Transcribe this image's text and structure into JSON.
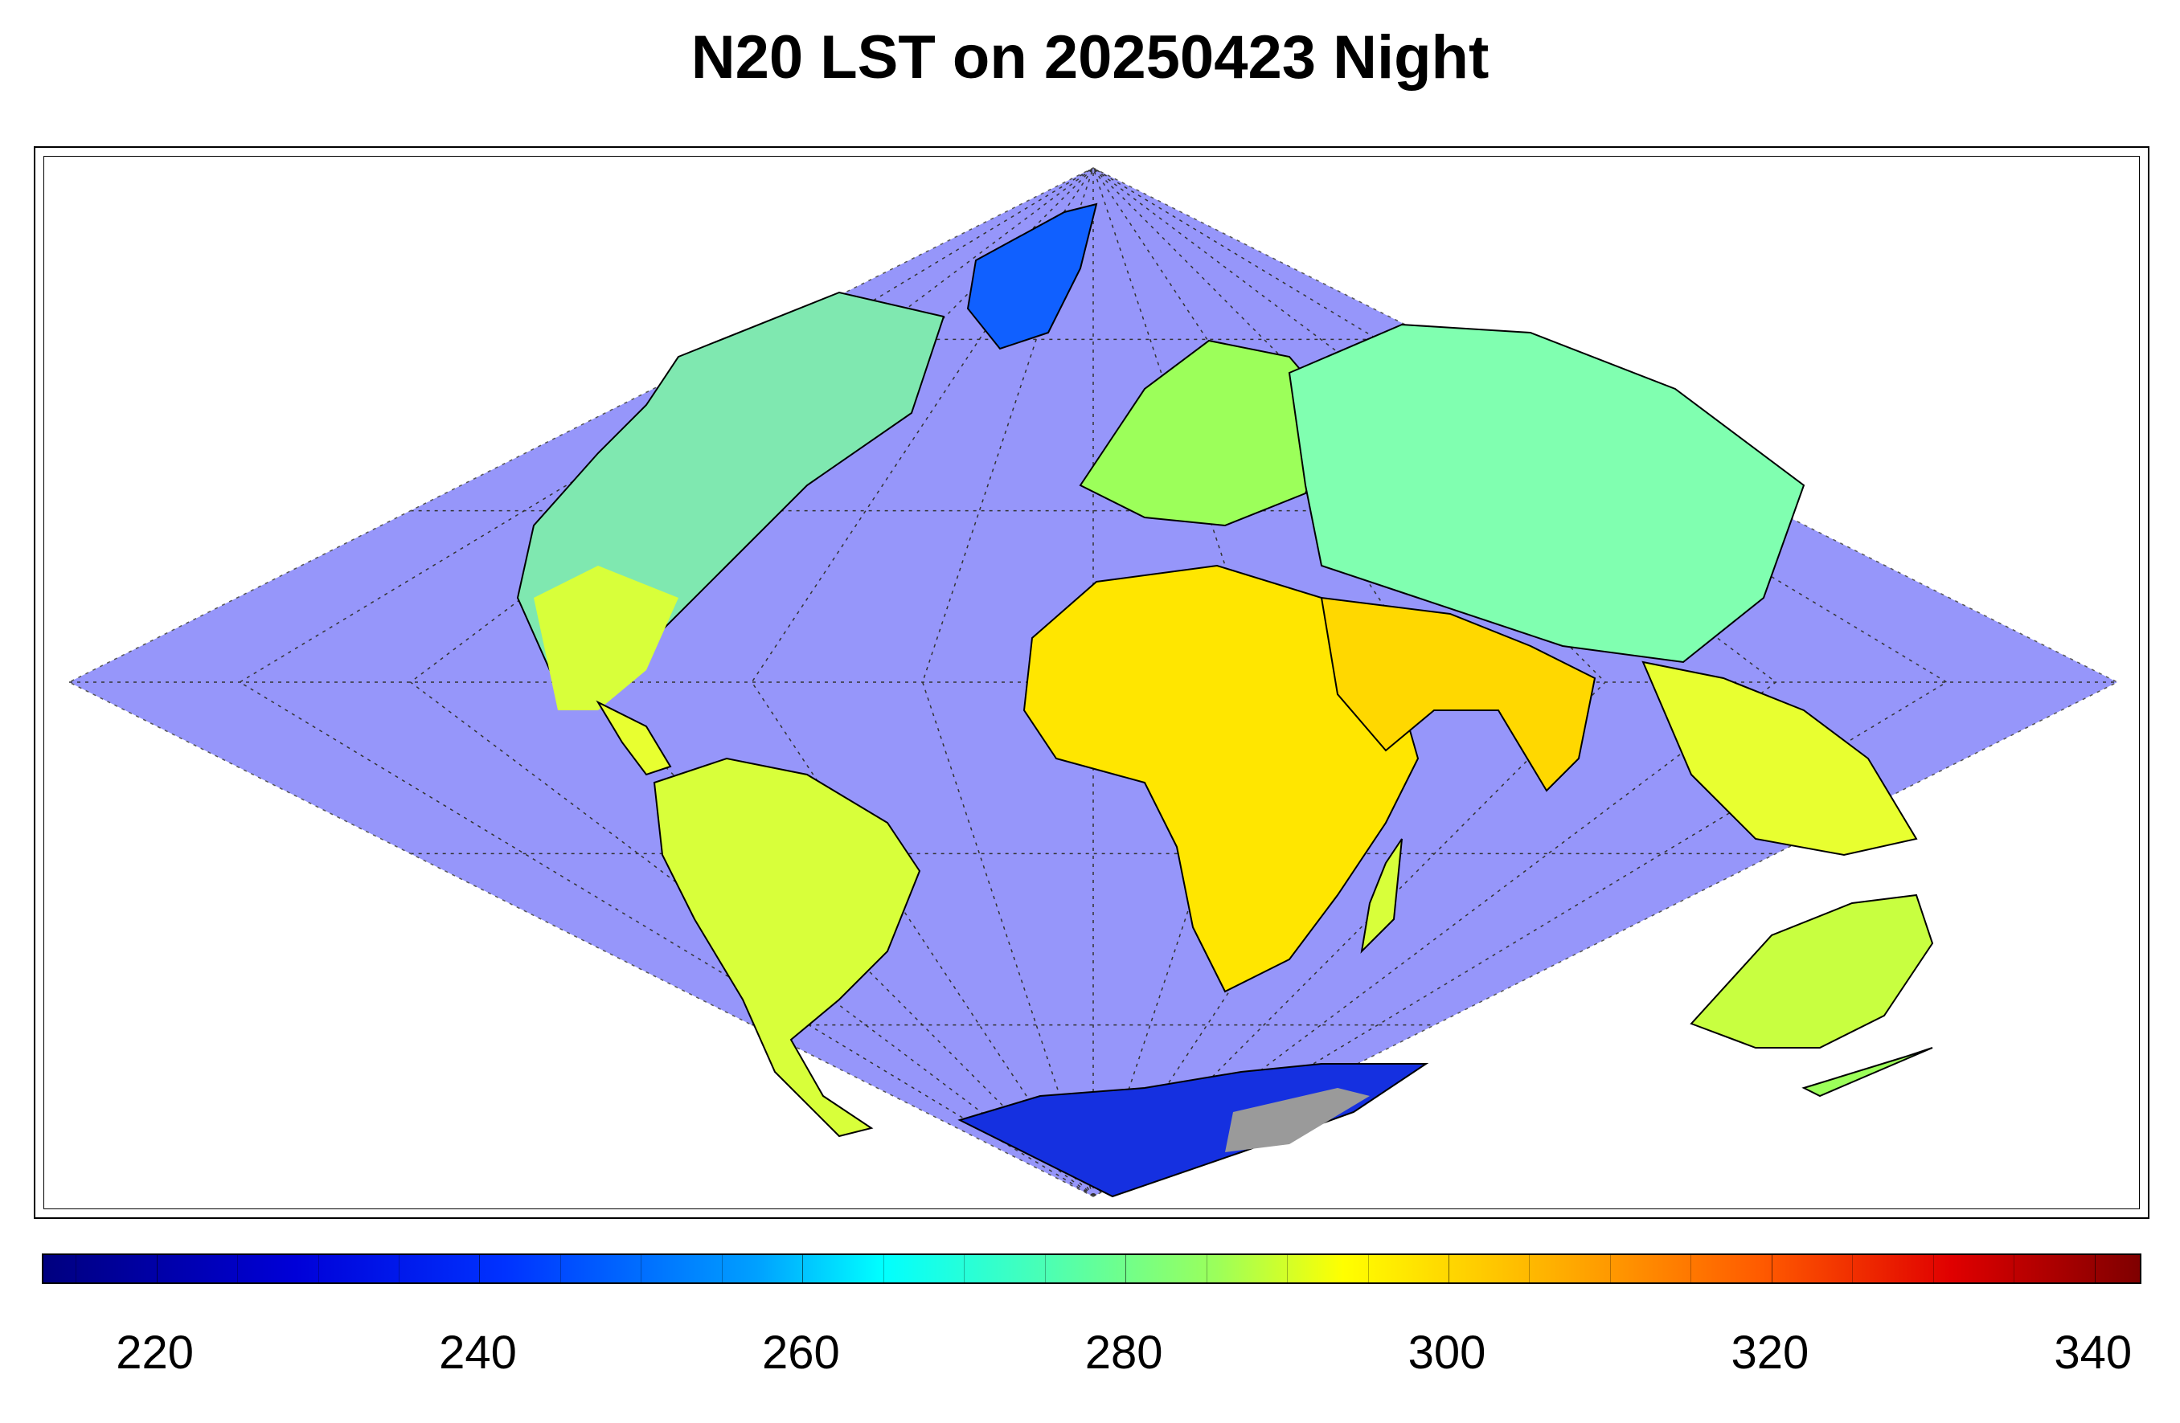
{
  "title": "N20 LST on 20250423 Night",
  "colors": {
    "ocean": "#9696fa",
    "no_data": "#9a9a9a",
    "coastline": "#000000"
  },
  "colorbar": {
    "min": 213,
    "max": 343,
    "tick_labels": [
      "220",
      "240",
      "260",
      "280",
      "300",
      "320",
      "340"
    ],
    "tick_values": [
      220,
      240,
      260,
      280,
      300,
      320,
      340
    ],
    "colormap": "jet"
  },
  "map": {
    "projection": "sinusoidal",
    "graticule": "dotted",
    "regions": [
      {
        "name": "north-america",
        "color": "#7fffa0"
      },
      {
        "name": "greenland",
        "color": "#1060ff"
      },
      {
        "name": "south-america",
        "color": "#d8ff3a"
      },
      {
        "name": "europe",
        "color": "#9cff5a"
      },
      {
        "name": "africa",
        "color": "#ffe600"
      },
      {
        "name": "asia",
        "color": "#80ffb0"
      },
      {
        "name": "arabia-india",
        "color": "#ffd800"
      },
      {
        "name": "australia",
        "color": "#c8ff40"
      },
      {
        "name": "antarctica",
        "color": "#1530e0"
      }
    ]
  }
}
